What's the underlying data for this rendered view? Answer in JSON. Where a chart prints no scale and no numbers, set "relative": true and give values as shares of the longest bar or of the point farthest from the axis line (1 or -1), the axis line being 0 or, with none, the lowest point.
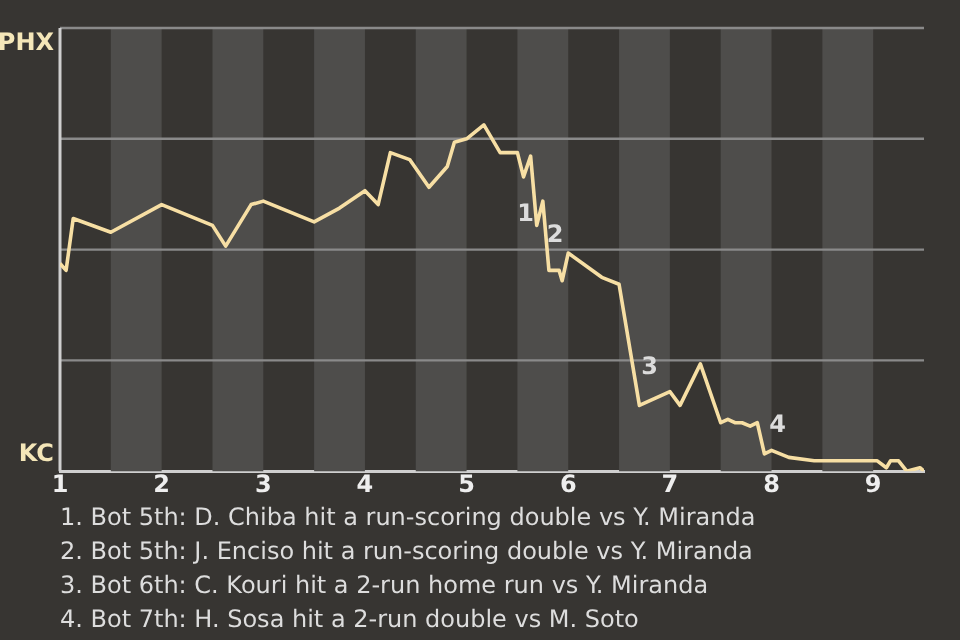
{
  "chart_data": {
    "type": "line",
    "relative": true,
    "color": "#f7dfa4",
    "marker": "none",
    "line_style": "solid",
    "legend": false,
    "x": [
      1,
      1.06,
      1.13,
      1.5,
      2,
      2.5,
      2.63,
      2.88,
      3,
      3.5,
      3.75,
      4,
      4.13,
      4.25,
      4.44,
      4.63,
      4.81,
      4.88,
      5,
      5.17,
      5.33,
      5.5,
      5.56,
      5.63,
      5.69,
      5.75,
      5.81,
      5.91,
      5.94,
      6,
      6.33,
      6.5,
      6.7,
      7,
      7.1,
      7.3,
      7.5,
      7.57,
      7.64,
      7.71,
      7.79,
      7.86,
      7.93,
      8,
      8.17,
      8.42,
      9,
      9.04,
      9.13,
      9.17,
      9.25,
      9.33,
      9.46,
      9.5
    ],
    "values": [
      0.6,
      0.58,
      0.73,
      0.69,
      0.77,
      0.71,
      0.65,
      0.77,
      0.78,
      0.72,
      0.76,
      0.81,
      0.77,
      0.92,
      0.9,
      0.82,
      0.88,
      0.95,
      0.96,
      1,
      0.92,
      0.92,
      0.85,
      0.91,
      0.71,
      0.78,
      0.58,
      0.58,
      0.55,
      0.63,
      0.56,
      0.54,
      0.19,
      0.23,
      0.19,
      0.31,
      0.14,
      0.15,
      0.14,
      0.14,
      0.13,
      0.14,
      0.05,
      0.06,
      0.04,
      0.03,
      0.03,
      0.03,
      0.01,
      0.03,
      0.03,
      0,
      0.01,
      0
    ],
    "xlim": [
      1,
      9.5
    ],
    "xticks": [
      1,
      2,
      3,
      4,
      5,
      6,
      7,
      8,
      9
    ],
    "ref_lines": [
      {
        "axis": "y",
        "value": 0.32,
        "color": "#8a8a8a"
      },
      {
        "axis": "y",
        "value": 0.64,
        "color": "#8a8a8a"
      },
      {
        "axis": "y",
        "value": 0.96,
        "color": "#8a8a8a"
      },
      {
        "axis": "y",
        "value": 1.28,
        "color": "#8a8a8a"
      }
    ],
    "bands": [
      {
        "axis": "x",
        "from": 1.5,
        "to": 2,
        "color": "#4e4d4b"
      },
      {
        "axis": "x",
        "from": 2.5,
        "to": 3,
        "color": "#4e4d4b"
      },
      {
        "axis": "x",
        "from": 3.5,
        "to": 4,
        "color": "#4e4d4b"
      },
      {
        "axis": "x",
        "from": 4.5,
        "to": 5,
        "color": "#4e4d4b"
      },
      {
        "axis": "x",
        "from": 5.5,
        "to": 6,
        "color": "#4e4d4b"
      },
      {
        "axis": "x",
        "from": 6.5,
        "to": 7,
        "color": "#4e4d4b"
      },
      {
        "axis": "x",
        "from": 7.5,
        "to": 8,
        "color": "#4e4d4b"
      },
      {
        "axis": "x",
        "from": 8.5,
        "to": 9,
        "color": "#4e4d4b"
      }
    ],
    "annotations": [
      "PHX",
      "KC",
      {
        "text": "1",
        "x": 5.58,
        "y": 0.74
      },
      {
        "text": "2",
        "x": 5.87,
        "y": 0.68
      },
      {
        "text": "3",
        "x": 6.8,
        "y": 0.3
      },
      {
        "text": "4",
        "x": 8.06,
        "y": 0.13
      },
      "1. Bot 5th: D. Chiba hit a run-scoring double vs Y. Miranda",
      "2. Bot 5th: J. Enciso hit a run-scoring double vs Y. Miranda",
      "3. Bot 6th: C. Kouri hit a 2-run home run vs Y. Miranda",
      "4. Bot 7th: H. Sosa hit a 2-run double vs M. Soto"
    ]
  }
}
